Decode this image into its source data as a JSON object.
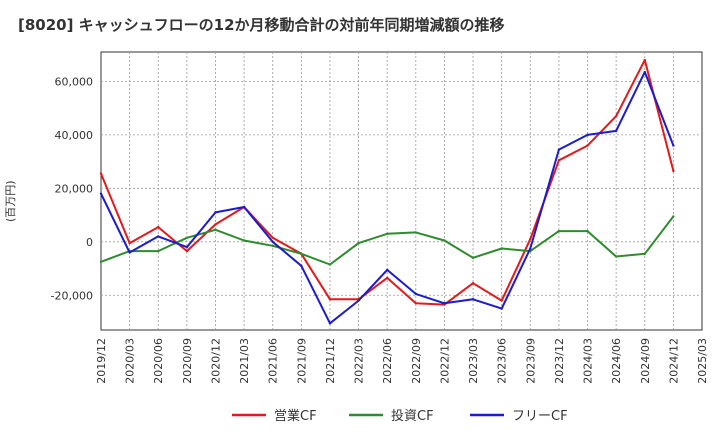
{
  "title": "[8020]  キャッシュフローの12か月移動合計の対前年同期増減額の推移",
  "chart_data": {
    "type": "line",
    "title": "[8020]  キャッシュフローの12か月移動合計の対前年同期増減額の推移",
    "xlabel": "",
    "ylabel": "(百万円)",
    "x": [
      "2019/12",
      "2020/03",
      "2020/06",
      "2020/09",
      "2020/12",
      "2021/03",
      "2021/06",
      "2021/09",
      "2021/12",
      "2022/03",
      "2022/06",
      "2022/09",
      "2022/12",
      "2023/03",
      "2023/06",
      "2023/09",
      "2023/12",
      "2024/03",
      "2024/06",
      "2024/09",
      "2024/12",
      "2025/03"
    ],
    "yticks": [
      -20000,
      0,
      20000,
      40000,
      60000
    ],
    "ytick_labels": [
      "-20,000",
      "0",
      "20,000",
      "40,000",
      "60,000"
    ],
    "ylim": [
      -33000,
      71000
    ],
    "grid": true,
    "legend_position": "bottom",
    "series": [
      {
        "name": "営業CF",
        "color": "#e31a1c",
        "values": [
          25500,
          -500,
          5500,
          -3500,
          6500,
          13000,
          1500,
          -4500,
          -21500,
          -21500,
          -13500,
          -23000,
          -23500,
          -15500,
          -22000,
          1000,
          30500,
          36000,
          47000,
          68000,
          26500,
          null
        ]
      },
      {
        "name": "投資CF",
        "color": "#2e8b2e",
        "values": [
          -7500,
          -3500,
          -3500,
          1500,
          4500,
          500,
          -1500,
          -4500,
          -8500,
          -500,
          3000,
          3500,
          500,
          -6000,
          -2500,
          -3500,
          4000,
          4000,
          -5500,
          -4500,
          9500,
          null
        ]
      },
      {
        "name": "フリーCF",
        "color": "#1c1ccc",
        "values": [
          18000,
          -4000,
          2000,
          -2000,
          11000,
          13000,
          0,
          -9000,
          -30500,
          -22000,
          -10500,
          -19500,
          -23000,
          -21500,
          -25000,
          -2500,
          34500,
          40000,
          41500,
          63500,
          36000,
          null
        ]
      }
    ]
  }
}
